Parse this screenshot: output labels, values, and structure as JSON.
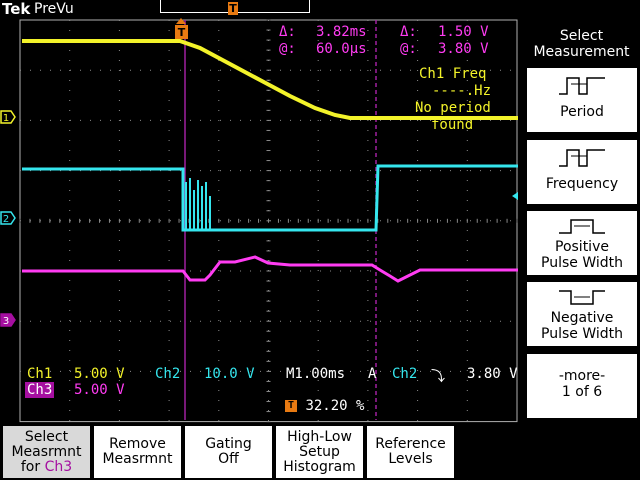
{
  "header": {
    "brand": "Tek",
    "status": "PreVu",
    "trigger_marker": "T"
  },
  "cursor_readout": {
    "time_delta_label": "Δ:",
    "time_delta": "3.82ms",
    "time_at_label": "@:",
    "time_at": "60.0µs",
    "volt_delta_label": "Δ:",
    "volt_delta": "1.50 V",
    "volt_at_label": "@:",
    "volt_at": "3.80 V"
  },
  "measurement_note": {
    "line1": "Ch1 Freq",
    "line2": "----.Hz",
    "line3": "No period",
    "line4": "found"
  },
  "channel_markers": {
    "ch1": "1",
    "ch2": "2",
    "ch3": "3"
  },
  "channel_settings": {
    "ch1_name": "Ch1",
    "ch1_scale": "5.00 V",
    "ch2_name": "Ch2",
    "ch2_scale": "10.0 V",
    "ch3_name": "Ch3",
    "ch3_scale": "5.00 V"
  },
  "timebase": {
    "scale": "M1.00ms",
    "mode": "A",
    "trigger_source": "Ch2",
    "trigger_slope_glyph": "⤵",
    "trigger_level": "3.80 V"
  },
  "trigger_position": {
    "icon": "T",
    "value": "32.20 %"
  },
  "side_menu": {
    "title_line1": "Select",
    "title_line2": "Measurement",
    "items": [
      {
        "label": "Period",
        "icon": "period-icon"
      },
      {
        "label": "Frequency",
        "icon": "frequency-icon"
      },
      {
        "label_line1": "Positive",
        "label_line2": "Pulse Width",
        "icon": "positive-pulse-icon"
      },
      {
        "label_line1": "Negative",
        "label_line2": "Pulse Width",
        "icon": "negative-pulse-icon"
      }
    ],
    "more_line1": "-more-",
    "more_line2": "1 of 6"
  },
  "bottom_menu": [
    {
      "line1": "Select",
      "line2": "Measrmnt",
      "line3a": "for ",
      "line3b": "Ch3"
    },
    {
      "line1": "Remove",
      "line2": "Measrmnt"
    },
    {
      "line1": "Gating",
      "line2": "Off"
    },
    {
      "line1": "High-Low",
      "line2": "Setup",
      "line3": "Histogram"
    },
    {
      "line1": "Reference",
      "line2": "Levels"
    }
  ],
  "colors": {
    "ch1": "#f3f32a",
    "ch2": "#35e6ee",
    "ch3": "#ff3cf2",
    "cursor": "#a020a0",
    "trigger": "#e87a12",
    "grid": "#8a8a8a"
  }
}
